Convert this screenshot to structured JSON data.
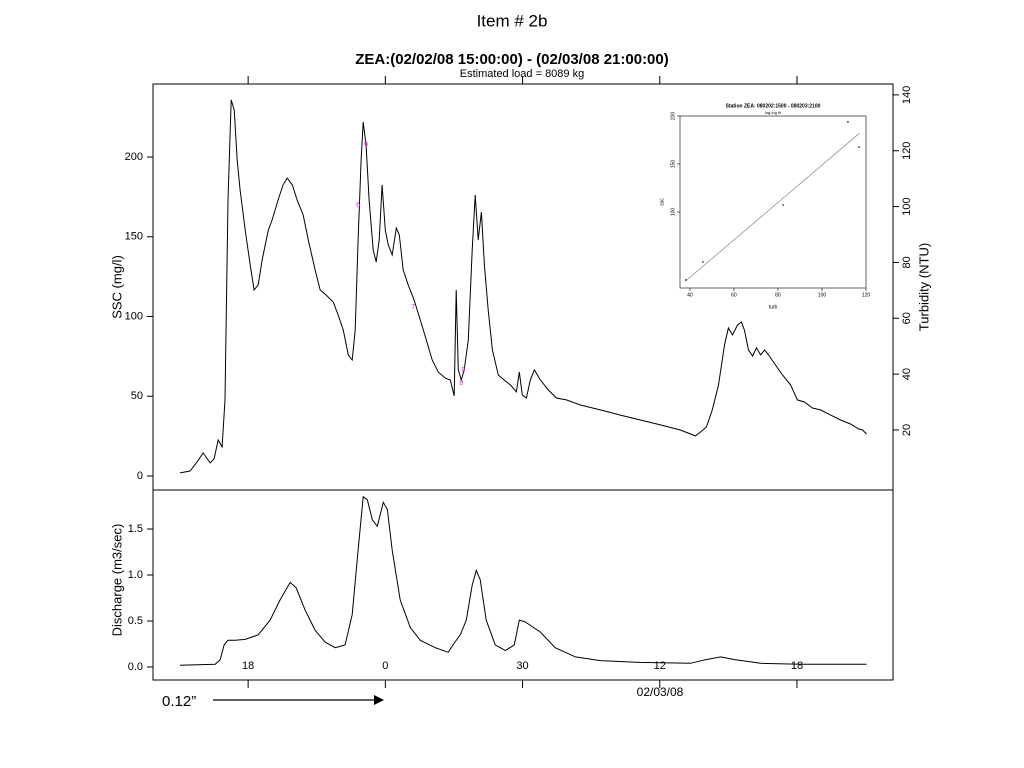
{
  "page_title": "Item # 2b",
  "annotation": "0.12”",
  "chart_data": [
    {
      "type": "line",
      "title": "ZEA:(02/02/08 15:00:00) - (02/03/08 21:00:00)",
      "subtitle": "Estimated load = 8089 kg",
      "ylabel": "SSC (mg/l)",
      "y2label": "Turbidity (NTU)",
      "color": "#000000",
      "x": [
        15.02,
        15.46,
        15.77,
        16.03,
        16.34,
        16.51,
        16.69,
        16.86,
        16.99,
        17.12,
        17.26,
        17.39,
        17.52,
        17.65,
        17.87,
        18.09,
        18.26,
        18.44,
        18.61,
        18.88,
        19.05,
        19.31,
        19.53,
        19.71,
        19.93,
        20.14,
        20.41,
        20.63,
        20.93,
        21.15,
        21.41,
        21.72,
        21.94,
        22.16,
        22.38,
        22.55,
        22.68,
        22.81,
        22.94,
        23.03,
        23.16,
        23.29,
        23.47,
        23.6,
        23.73,
        23.86,
        24.0,
        24.13,
        24.3,
        24.48,
        24.61,
        24.78,
        25.0,
        25.26,
        25.53,
        25.79,
        26.05,
        26.31,
        26.62,
        26.84,
        27.01,
        27.1,
        27.19,
        27.32,
        27.45,
        27.63,
        27.8,
        27.93,
        28.06,
        28.2,
        28.33,
        28.5,
        28.68,
        28.94,
        29.2,
        29.47,
        29.73,
        29.86,
        29.99,
        30.17,
        30.34,
        30.52,
        30.78,
        31.13,
        31.48,
        31.92,
        32.53,
        33.4,
        34.28,
        35.15,
        36.03,
        36.9,
        37.56,
        37.78,
        38.04,
        38.3,
        38.57,
        38.83,
        39.0,
        39.18,
        39.4,
        39.57,
        39.7,
        39.88,
        40.06,
        40.23,
        40.41,
        40.58,
        40.76,
        41.06,
        41.37,
        41.72,
        42.02,
        42.33,
        42.68,
        43.03,
        43.47,
        43.91,
        44.34,
        44.69,
        44.87,
        45.04
      ],
      "values": [
        1.9,
        3.1,
        8.8,
        14.4,
        8.2,
        10.7,
        22.6,
        18.2,
        47.7,
        173.1,
        235.8,
        229.5,
        198.1,
        179.3,
        154.2,
        132.3,
        116.6,
        119.8,
        135.4,
        154.2,
        160.5,
        173.1,
        182.5,
        186.8,
        182.5,
        173.1,
        163.6,
        148.0,
        129.2,
        116.6,
        113.5,
        109.1,
        100.9,
        91.5,
        75.9,
        72.7,
        91.5,
        148.0,
        198.1,
        222.0,
        207.5,
        173.1,
        141.7,
        134.2,
        148.0,
        182.5,
        154.2,
        144.8,
        138.6,
        155.5,
        151.1,
        129.2,
        119.8,
        110.4,
        97.8,
        85.3,
        72.7,
        65.2,
        61.4,
        60.2,
        50.2,
        116.6,
        66.5,
        60.2,
        66.5,
        85.3,
        141.7,
        176.2,
        148.0,
        165.5,
        132.3,
        104.1,
        79.0,
        63.3,
        60.2,
        57.1,
        52.7,
        65.2,
        50.8,
        48.9,
        60.2,
        66.5,
        60.2,
        53.9,
        48.9,
        47.7,
        44.5,
        41.4,
        38.2,
        35.1,
        32.0,
        28.8,
        25.1,
        27.6,
        30.7,
        41.4,
        57.1,
        82.1,
        92.8,
        88.4,
        94.7,
        96.6,
        91.5,
        79.0,
        75.2,
        80.3,
        75.9,
        79.0,
        75.9,
        69.6,
        63.3,
        57.1,
        47.7,
        46.4,
        42.6,
        41.4,
        38.2,
        35.1,
        32.6,
        29.5,
        28.8,
        26.3
      ],
      "samples": {
        "color": "#e020e0",
        "x": [
          23.16,
          22.81,
          25.22,
          27.32,
          27.41
        ],
        "values": [
          208.2,
          169.9,
          106.0,
          58.3,
          66.5
        ],
        "labels": [
          "6",
          "6",
          "7",
          "8",
          "9"
        ]
      },
      "xlim": [
        13.84,
        46.2
      ],
      "ylim": [
        -8.8,
        245.8
      ],
      "yticks": [
        0,
        50,
        100,
        150,
        200
      ],
      "y2lim": [
        -1.5,
        143.9
      ],
      "y2ticks": [
        20,
        40,
        60,
        80,
        100,
        120,
        140
      ]
    },
    {
      "type": "line",
      "ylabel": "Discharge (m3/sec)",
      "xlabel": "02/03/08",
      "color": "#000000",
      "x": [
        15.02,
        16.56,
        16.78,
        16.95,
        17.12,
        17.43,
        17.87,
        18.44,
        18.96,
        19.4,
        19.84,
        20.1,
        20.49,
        20.93,
        21.37,
        21.81,
        22.24,
        22.55,
        22.81,
        23.03,
        23.21,
        23.43,
        23.65,
        23.91,
        24.09,
        24.3,
        24.65,
        25.09,
        25.53,
        26.18,
        26.75,
        27.01,
        27.28,
        27.54,
        27.8,
        27.98,
        28.15,
        28.41,
        28.81,
        29.25,
        29.64,
        29.86,
        30.12,
        30.78,
        31.43,
        32.31,
        33.4,
        35.15,
        37.34,
        38.0,
        38.66,
        39.31,
        40.41,
        42.16,
        45.04
      ],
      "values": [
        0.02,
        0.03,
        0.08,
        0.24,
        0.29,
        0.29,
        0.3,
        0.35,
        0.51,
        0.73,
        0.92,
        0.86,
        0.62,
        0.4,
        0.27,
        0.21,
        0.24,
        0.57,
        1.27,
        1.85,
        1.82,
        1.6,
        1.53,
        1.79,
        1.71,
        1.27,
        0.73,
        0.43,
        0.29,
        0.21,
        0.16,
        0.26,
        0.35,
        0.51,
        0.89,
        1.05,
        0.95,
        0.51,
        0.24,
        0.18,
        0.24,
        0.51,
        0.49,
        0.38,
        0.21,
        0.11,
        0.07,
        0.05,
        0.04,
        0.08,
        0.11,
        0.08,
        0.04,
        0.03,
        0.03
      ],
      "xlim": [
        13.84,
        46.2
      ],
      "xticks": [
        18,
        {
          "value": 24,
          "label": "0"
        },
        30,
        {
          "value": 36,
          "label": "12"
        },
        {
          "value": 42,
          "label": "18"
        }
      ],
      "ylim": [
        -0.141,
        1.924
      ],
      "yticks": [
        {
          "value": 0,
          "label": "0.0"
        },
        0.5,
        {
          "value": 1,
          "label": "1.0"
        },
        1.5
      ]
    },
    {
      "type": "scatter",
      "title": "Station ZEA: 080202:1500 - 080203:2100",
      "subtitle": "log-log fit",
      "xlabel": "turb",
      "ylabel": "ssc",
      "color": "#333333",
      "x": [
        38.2,
        45.9,
        82.3,
        111.8,
        116.8
      ],
      "values": [
        29.2,
        47.9,
        107.3,
        193.8,
        167.7
      ],
      "fit": {
        "x": [
          38,
          117
        ],
        "values": [
          28,
          182
        ],
        "color": "#888888"
      },
      "xlim": [
        35.5,
        120
      ],
      "ylim": [
        20.8,
        200
      ],
      "xticks": [
        40,
        60,
        80,
        100,
        120
      ],
      "yticks": [
        100,
        150,
        200
      ]
    }
  ]
}
